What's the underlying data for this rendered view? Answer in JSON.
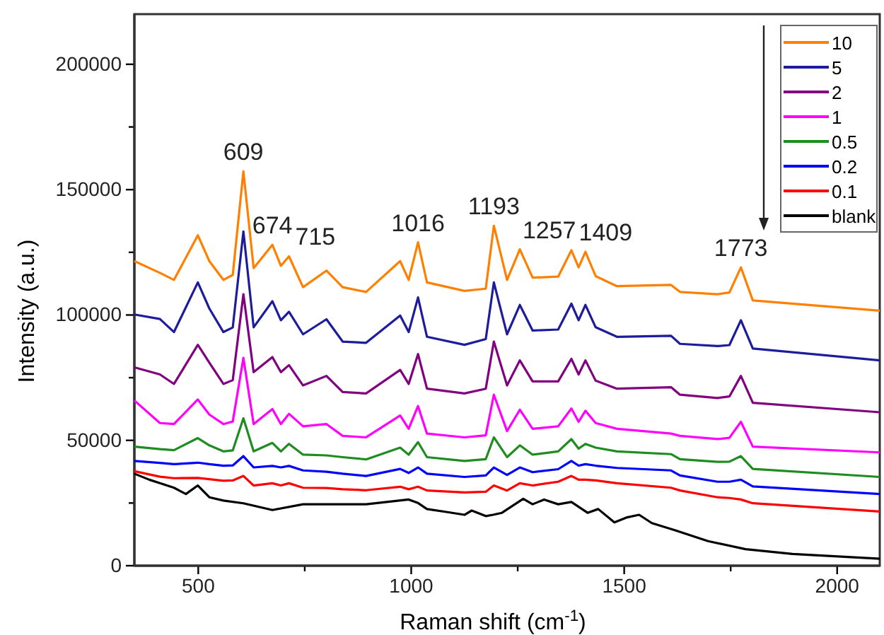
{
  "chart_data": {
    "type": "line",
    "xlabel": "Raman shift (cm$^{-1}$)",
    "ylabel": "Intensity (a.u.)",
    "xlim": [
      350,
      2100
    ],
    "ylim": [
      0,
      220000
    ],
    "xticks": [
      500,
      {
        "value": 750,
        "label": null
      },
      1000,
      {
        "value": 1250,
        "label": null
      },
      1500,
      {
        "value": 1750,
        "label": null
      },
      2000
    ],
    "yticks": [
      0,
      {
        "value": 25000,
        "label": null
      },
      50000,
      {
        "value": 75000,
        "label": null
      },
      100000,
      {
        "value": 125000,
        "label": null
      },
      150000,
      {
        "value": 175000,
        "label": null
      },
      200000
    ],
    "legend": "top right",
    "x": [
      350,
      410,
      443,
      499,
      526,
      559,
      581,
      606,
      630,
      674,
      694,
      713,
      746,
      801,
      839,
      894,
      974,
      994,
      1016,
      1037,
      1125,
      1175,
      1194,
      1225,
      1255,
      1285,
      1345,
      1376,
      1393,
      1409,
      1433,
      1483,
      1610,
      1631,
      1719,
      1747,
      1774,
      1802,
      2100
    ],
    "series": [
      {
        "name": "10",
        "color": "#ff8000",
        "values": [
          121500,
          116800,
          114000,
          131800,
          121500,
          114000,
          116000,
          157300,
          118700,
          128000,
          119600,
          123400,
          111100,
          117700,
          111100,
          109200,
          121500,
          114000,
          129000,
          113000,
          109600,
          110500,
          135600,
          114000,
          126200,
          114900,
          115300,
          125800,
          119000,
          125200,
          115500,
          111500,
          112000,
          109200,
          108300,
          109000,
          119000,
          105800,
          101700
        ]
      },
      {
        "name": "5",
        "color": "#1c1c9c",
        "values": [
          100200,
          98400,
          93200,
          113000,
          102600,
          93200,
          95000,
          133300,
          95100,
          105500,
          97900,
          101300,
          92300,
          98300,
          89400,
          88900,
          99800,
          93200,
          107000,
          91300,
          88100,
          90400,
          113000,
          92300,
          104000,
          93800,
          94200,
          104500,
          97900,
          104000,
          95100,
          91300,
          91700,
          88500,
          87600,
          88000,
          97900,
          86600,
          81900
        ]
      },
      {
        "name": "2",
        "color": "#800080",
        "values": [
          79100,
          76300,
          72500,
          88100,
          81000,
          72500,
          74000,
          108300,
          77200,
          83200,
          77200,
          80000,
          71900,
          75700,
          69300,
          68700,
          78100,
          72500,
          84400,
          70600,
          68700,
          70600,
          89400,
          71900,
          81900,
          73500,
          73500,
          82500,
          76300,
          81900,
          73800,
          70600,
          71200,
          68200,
          66900,
          67500,
          75700,
          65000,
          61200
        ]
      },
      {
        "name": "1",
        "color": "#ff00ff",
        "values": [
          65900,
          56900,
          56500,
          66300,
          60300,
          56500,
          57500,
          82900,
          56500,
          62500,
          56500,
          60600,
          55600,
          56500,
          51800,
          51200,
          59900,
          54600,
          63700,
          52700,
          51200,
          52000,
          68200,
          53700,
          62200,
          54600,
          55600,
          62700,
          57400,
          61800,
          56900,
          54600,
          52700,
          51800,
          50500,
          51000,
          57400,
          47500,
          45200
        ]
      },
      {
        "name": "0.5",
        "color": "#1e8c1e",
        "values": [
          47500,
          46500,
          46100,
          50900,
          48000,
          45600,
          46000,
          58800,
          45600,
          49000,
          45600,
          48600,
          44300,
          44000,
          43300,
          42400,
          47100,
          44300,
          49300,
          43300,
          41800,
          42500,
          51200,
          43300,
          48000,
          44300,
          45600,
          50500,
          46700,
          48600,
          47100,
          45600,
          44500,
          42500,
          41400,
          41500,
          43700,
          38600,
          35400
        ]
      },
      {
        "name": "0.2",
        "color": "#0000ff",
        "values": [
          41800,
          41000,
          40500,
          41100,
          40500,
          39900,
          40000,
          43700,
          39200,
          39800,
          39200,
          39800,
          38000,
          37500,
          36700,
          35800,
          38600,
          37000,
          39200,
          36700,
          35400,
          36000,
          39200,
          36200,
          39200,
          37300,
          38500,
          41800,
          39900,
          40500,
          39900,
          39000,
          38000,
          36000,
          33500,
          33500,
          34300,
          31600,
          28600
        ]
      },
      {
        "name": "0.1",
        "color": "#ff0000",
        "values": [
          37700,
          35500,
          34900,
          35000,
          34500,
          33900,
          34000,
          35800,
          32000,
          32900,
          32000,
          32900,
          31100,
          31000,
          30500,
          30100,
          31500,
          30500,
          31500,
          30000,
          29200,
          29500,
          32000,
          30000,
          32900,
          32000,
          33500,
          35800,
          34300,
          34300,
          34000,
          32900,
          31100,
          30000,
          27300,
          27000,
          26400,
          24900,
          21600
        ]
      },
      {
        "name": "blank",
        "color": "#000000",
        "x": [
          350,
          385,
          410,
          443,
          471,
          499,
          526,
          559,
          606,
          674,
          746,
          839,
          894,
          994,
          1016,
          1037,
          1080,
          1125,
          1142,
          1175,
          1192,
          1213,
          1263,
          1285,
          1312,
          1345,
          1376,
          1414,
          1439,
          1477,
          1505,
          1535,
          1565,
          1620,
          1697,
          1785,
          1895,
          2100
        ],
        "values": [
          36700,
          34300,
          32900,
          31100,
          28600,
          32000,
          27300,
          26000,
          24900,
          22200,
          24500,
          24500,
          24500,
          26400,
          25000,
          22600,
          21500,
          20300,
          22000,
          19800,
          20300,
          21100,
          26700,
          24500,
          26400,
          24500,
          25400,
          21100,
          22600,
          17300,
          19200,
          20300,
          17000,
          14100,
          9800,
          6600,
          4700,
          2800
        ]
      }
    ],
    "annotations": [
      {
        "text": "609",
        "x": 606,
        "y": 157300
      },
      {
        "text": "674",
        "x": 674,
        "y": 128000
      },
      {
        "text": "715",
        "x": 713,
        "y": 123400
      },
      {
        "text": "1016",
        "x": 1016,
        "y": 129000
      },
      {
        "text": "1193",
        "x": 1194,
        "y": 135600
      },
      {
        "text": "1257",
        "x": 1255,
        "y": 126200
      },
      {
        "text": "1409",
        "x": 1409,
        "y": 125200
      },
      {
        "text": "1773",
        "x": 1774,
        "y": 119000
      }
    ]
  }
}
